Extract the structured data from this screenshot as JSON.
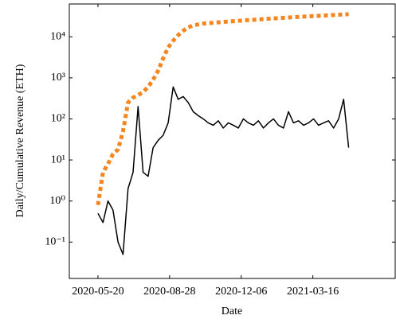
{
  "chart_data": {
    "type": "line",
    "x_label": "Date",
    "y_label": "Daily/Cumulative Revenue (ETH)",
    "log_y": true,
    "x": [
      "2020-05-20",
      "2020-05-27",
      "2020-06-03",
      "2020-06-10",
      "2020-06-17",
      "2020-06-24",
      "2020-07-01",
      "2020-07-08",
      "2020-07-15",
      "2020-07-22",
      "2020-07-29",
      "2020-08-05",
      "2020-08-12",
      "2020-08-19",
      "2020-08-26",
      "2020-09-02",
      "2020-09-09",
      "2020-09-16",
      "2020-09-23",
      "2020-09-30",
      "2020-10-07",
      "2020-10-14",
      "2020-10-21",
      "2020-10-28",
      "2020-11-04",
      "2020-11-11",
      "2020-11-18",
      "2020-11-25",
      "2020-12-02",
      "2020-12-09",
      "2020-12-16",
      "2020-12-23",
      "2020-12-30",
      "2021-01-06",
      "2021-01-13",
      "2021-01-20",
      "2021-01-27",
      "2021-02-03",
      "2021-02-10",
      "2021-02-17",
      "2021-02-24",
      "2021-03-03",
      "2021-03-10",
      "2021-03-17",
      "2021-03-24",
      "2021-03-31",
      "2021-04-07",
      "2021-04-14",
      "2021-04-21",
      "2021-04-28",
      "2021-05-05"
    ],
    "series": [
      {
        "name": "Daily",
        "color": "#000000",
        "dash": false,
        "values": [
          0.5,
          0.3,
          1,
          0.6,
          0.1,
          0.05,
          2,
          5,
          200,
          5,
          4,
          20,
          30,
          40,
          80,
          600,
          300,
          350,
          250,
          150,
          120,
          100,
          80,
          70,
          90,
          60,
          80,
          70,
          60,
          100,
          80,
          70,
          90,
          60,
          80,
          100,
          70,
          60,
          150,
          80,
          90,
          70,
          80,
          100,
          70,
          80,
          90,
          60,
          100,
          300,
          20
        ]
      },
      {
        "name": "Cumulative",
        "color": "#f5861f",
        "dash": true,
        "values": [
          0.8,
          5,
          8,
          14,
          18,
          50,
          250,
          330,
          380,
          450,
          600,
          900,
          1500,
          3000,
          5500,
          8000,
          11000,
          14000,
          17000,
          19000,
          20000,
          21000,
          21500,
          22000,
          22500,
          23000,
          23500,
          24000,
          24500,
          25000,
          25500,
          26000,
          26500,
          27000,
          27500,
          28000,
          28500,
          29000,
          29500,
          30000,
          30500,
          31000,
          31500,
          32000,
          32500,
          33000,
          33500,
          34000,
          34500,
          35000,
          35500
        ]
      }
    ],
    "xlim": [
      "2020-04-10",
      "2021-07-09"
    ],
    "xticks": [
      "2020-05-20",
      "2020-08-28",
      "2020-12-06",
      "2021-03-16"
    ],
    "ylim": [
      0.013,
      63000
    ],
    "yticks": [
      {
        "value": 0.1,
        "label": "10⁻¹"
      },
      {
        "value": 1,
        "label": "10⁰"
      },
      {
        "value": 10,
        "label": "10¹"
      },
      {
        "value": 100,
        "label": "10²"
      },
      {
        "value": 1000,
        "label": "10³"
      },
      {
        "value": 10000,
        "label": "10⁴"
      }
    ]
  }
}
